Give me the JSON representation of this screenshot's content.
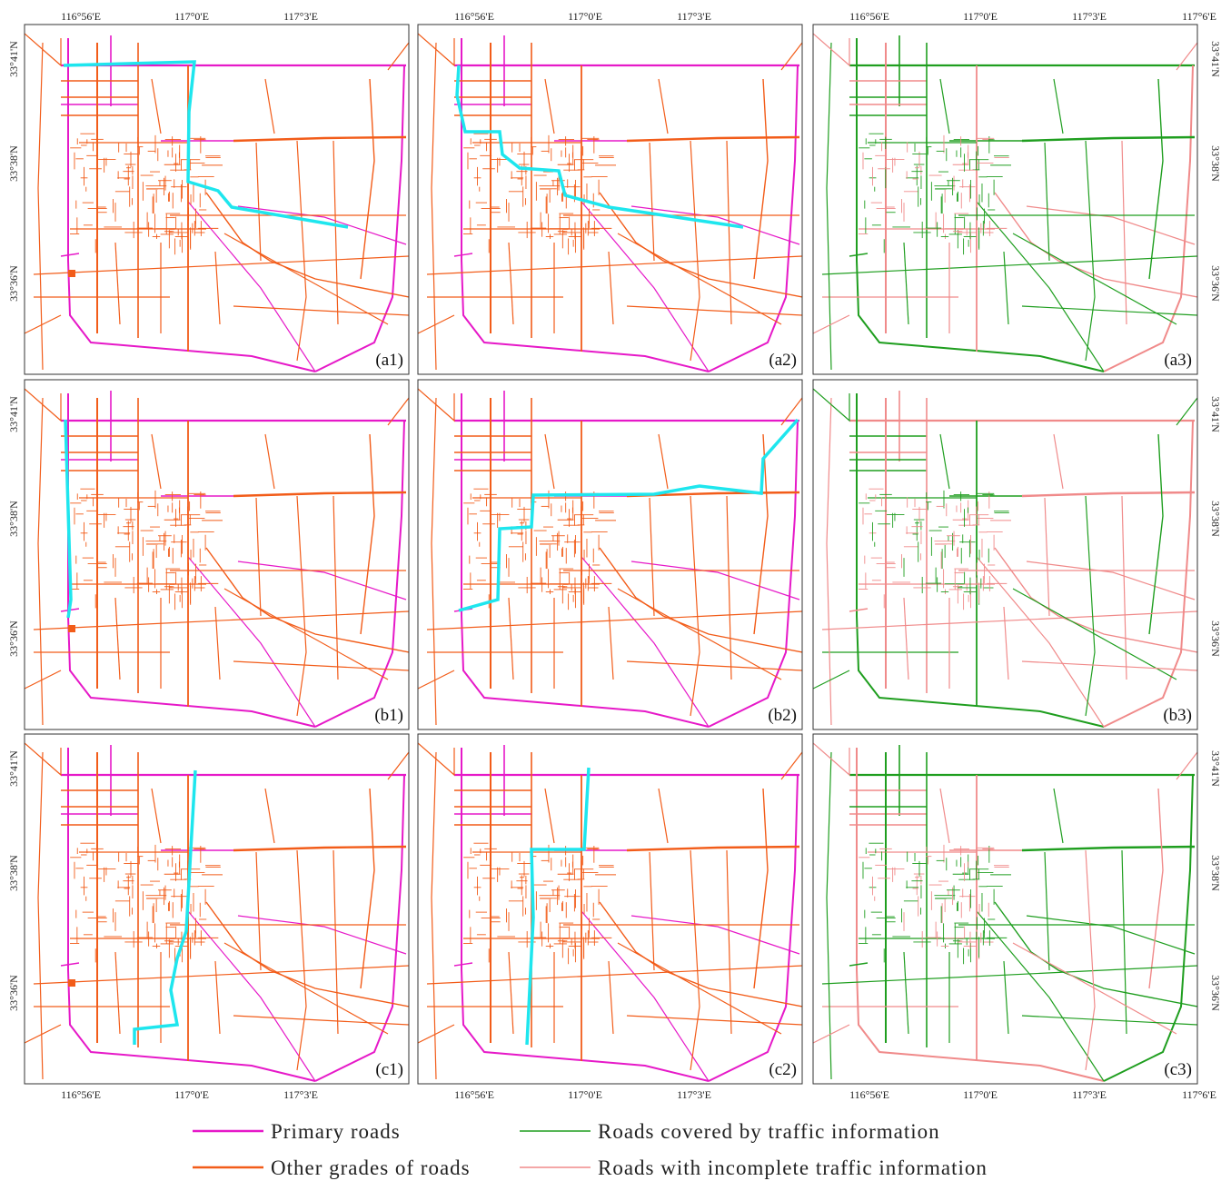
{
  "top_axis": [
    [
      "116°56'E",
      "117°0'E",
      "117°3'E"
    ],
    [
      "116°56'E",
      "117°0'E",
      "117°3'E"
    ],
    [
      "116°56'E",
      "117°0'E",
      "117°3'E",
      "117°6'E"
    ]
  ],
  "bottom_axis": [
    [
      "116°56'E",
      "117°0'E",
      "117°3'E"
    ],
    [
      "116°56'E",
      "117°0'E",
      "117°3'E"
    ],
    [
      "116°56'E",
      "117°0'E",
      "117°3'E",
      "117°6'E"
    ]
  ],
  "left_axis": [
    [
      "33°41'N",
      "33°38'N",
      "33°36'N"
    ],
    [
      "33°41'N",
      "33°38'N",
      "33°36'N"
    ],
    [
      "33°41'N",
      "33°38'N",
      "33°36'N"
    ]
  ],
  "right_axis": [
    [
      "33°41'N",
      "33°38'N",
      "33°36'N"
    ],
    [
      "33°41'N",
      "33°38'N",
      "33°36'N"
    ],
    [
      "33°41'N",
      "33°38'N",
      "33°36'N"
    ]
  ],
  "panels": [
    {
      "label": "(a1)"
    },
    {
      "label": "(a2)"
    },
    {
      "label": "(a3)"
    },
    {
      "label": "(b1)"
    },
    {
      "label": "(b2)"
    },
    {
      "label": "(b3)"
    },
    {
      "label": "(c1)"
    },
    {
      "label": "(c2)"
    },
    {
      "label": "(c3)"
    }
  ],
  "legend": [
    {
      "label": "Primary roads",
      "color": "#e619c8"
    },
    {
      "label": "Other grades of roads",
      "color": "#f25c19"
    },
    {
      "label": "Roads covered by traffic information",
      "color": "#1f9e1f"
    },
    {
      "label": "Roads with incomplete traffic information",
      "color": "#f08a8a"
    }
  ]
}
